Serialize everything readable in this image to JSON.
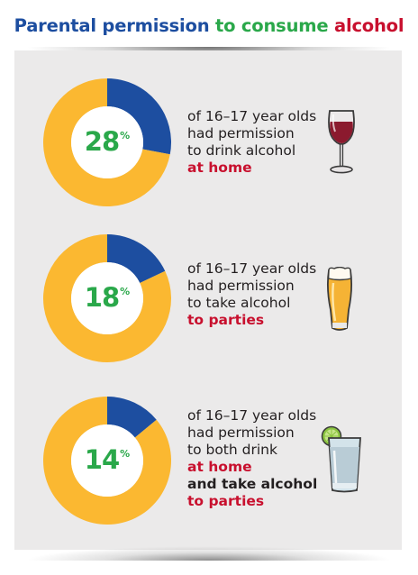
{
  "title": {
    "part1": "Parental permission",
    "part2": "to consume",
    "part3": "alcohol"
  },
  "colors": {
    "blue": "#1d4ea0",
    "green": "#2aa84a",
    "red": "#c8102e",
    "yellow": "#fbb831",
    "panel": "#ebeaea"
  },
  "chart_data": [
    {
      "type": "pie",
      "values": [
        28,
        72
      ],
      "value_label": "28",
      "unit": "%",
      "lines": [
        "of 16–17 year olds",
        "had permission",
        "to drink alcohol"
      ],
      "highlight": "at home",
      "icon": "wine-glass-icon"
    },
    {
      "type": "pie",
      "values": [
        18,
        82
      ],
      "value_label": "18",
      "unit": "%",
      "lines": [
        "of 16–17 year olds",
        "had permission",
        "to take alcohol"
      ],
      "highlight": "to parties",
      "icon": "beer-glass-icon"
    },
    {
      "type": "pie",
      "values": [
        14,
        86
      ],
      "value_label": "14",
      "unit": "%",
      "lines": [
        "of 16–17 year olds",
        "had permission",
        "to both drink"
      ],
      "highlight": "at home",
      "connector": "and take alcohol",
      "highlight2": "to parties",
      "icon": "cocktail-glass-icon"
    }
  ]
}
